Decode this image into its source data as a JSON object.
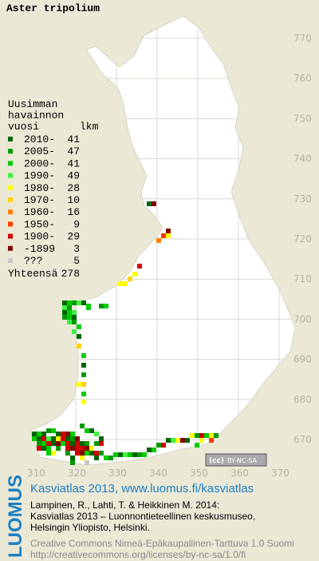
{
  "title": "Aster tripolium",
  "legend": {
    "heading": [
      "Uusimman",
      "havainnon",
      "vuosi"
    ],
    "count_heading": "lkm",
    "rows": [
      {
        "label": "2010-",
        "count": 41,
        "color": "#006400"
      },
      {
        "label": "2005-",
        "count": 47,
        "color": "#009a00"
      },
      {
        "label": "2000-",
        "count": 41,
        "color": "#00cc00"
      },
      {
        "label": "1990-",
        "count": 49,
        "color": "#40f040"
      },
      {
        "label": "1980-",
        "count": 28,
        "color": "#ffff00"
      },
      {
        "label": "1970-",
        "count": 10,
        "color": "#ffd200"
      },
      {
        "label": "1960-",
        "count": 16,
        "color": "#ff8000"
      },
      {
        "label": "1950-",
        "count": 9,
        "color": "#ff3c00"
      },
      {
        "label": "1900-",
        "count": 29,
        "color": "#d00000"
      },
      {
        "label": "-1899",
        "count": 3,
        "color": "#800000"
      },
      {
        "label": "???",
        "count": 5,
        "color": "#c8c8c8"
      }
    ],
    "total_label": "Yhteensä",
    "total": 278
  },
  "map": {
    "y_grid_labels": [
      770,
      760,
      750,
      740,
      730,
      720,
      710,
      700,
      690,
      680,
      670
    ],
    "x_grid_labels": [
      310,
      320,
      330,
      340,
      350,
      360,
      370
    ]
  },
  "badge": {
    "cc": "(cc)",
    "license": "BY-NC-SA"
  },
  "footer": {
    "brand": "LUOMUS",
    "link": "Kasviatlas 2013, www.luomus.fi/kasviatlas",
    "citation": [
      "Lampinen, R., Lahti, T. & Heikkinen M. 2014:",
      "Kasviatlas 2013 – Luonnontieteellinen keskusmuseo,",
      "Helsingin Yliopisto, Helsinki."
    ],
    "license": [
      "Creative Commons Nimeä-Epäkaupallinen-Tarttuva 1.0 Suomi",
      "http://creativecommons.org/licenses/by-nc-sa/1.0/fi"
    ]
  }
}
